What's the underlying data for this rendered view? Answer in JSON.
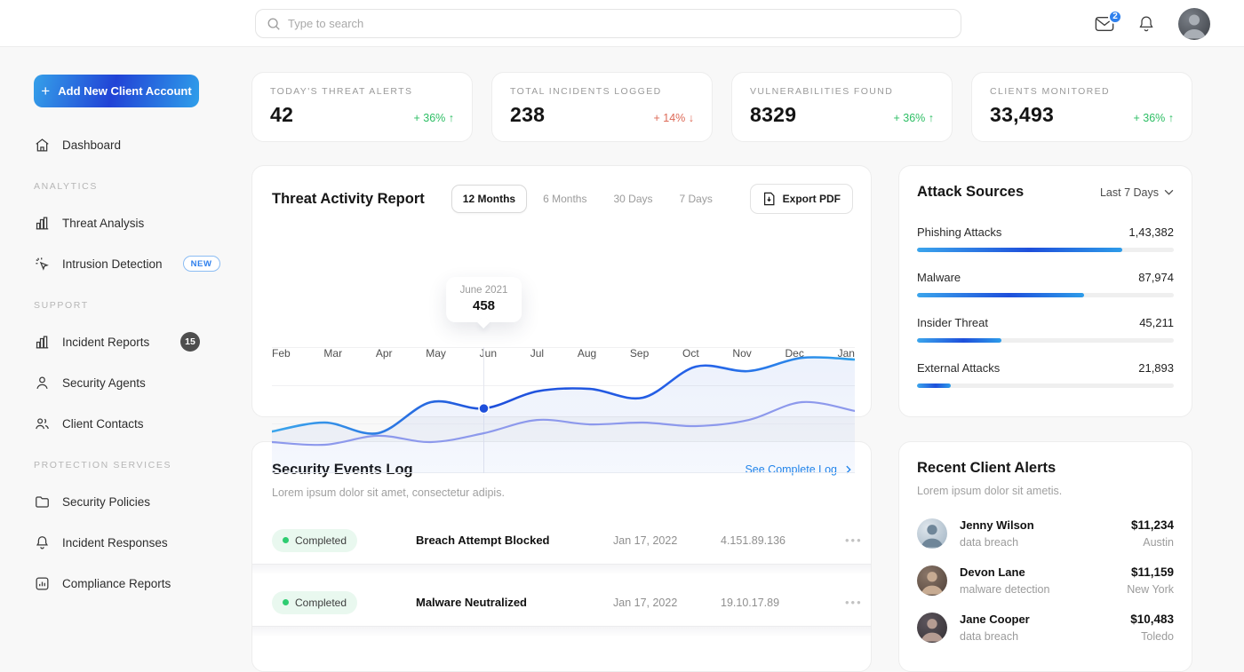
{
  "header": {
    "search_placeholder": "Type to search",
    "mail_badge": "2"
  },
  "sidebar": {
    "add_button": "Add New Client Account",
    "dashboard": "Dashboard",
    "sections": [
      {
        "label": "ANALYTICS",
        "items": [
          {
            "label": "Threat Analysis",
            "icon": "bar-chart"
          },
          {
            "label": "Intrusion Detection",
            "icon": "cursor-click",
            "badge": "NEW"
          }
        ]
      },
      {
        "label": "SUPPORT",
        "items": [
          {
            "label": "Incident Reports",
            "icon": "bar-chart",
            "badge": "15"
          },
          {
            "label": "Security Agents",
            "icon": "person"
          },
          {
            "label": "Client Contacts",
            "icon": "people"
          }
        ]
      },
      {
        "label": "PROTECTION SERVICES",
        "items": [
          {
            "label": "Security Policies",
            "icon": "folder"
          },
          {
            "label": "Incident Responses",
            "icon": "bell"
          },
          {
            "label": "Compliance Reports",
            "icon": "chart-square"
          }
        ]
      }
    ]
  },
  "stats": [
    {
      "label": "TODAY'S THREAT ALERTS",
      "value": "42",
      "change": "+ 36%",
      "arrow": "↑",
      "direction": "up"
    },
    {
      "label": "TOTAL INCIDENTS LOGGED",
      "value": "238",
      "change": "+ 14%",
      "arrow": "↓",
      "direction": "down"
    },
    {
      "label": "VULNERABILITIES FOUND",
      "value": "8329",
      "change": "+ 36%",
      "arrow": "↑",
      "direction": "up"
    },
    {
      "label": "CLIENTS MONITORED",
      "value": "33,493",
      "change": "+ 36%",
      "arrow": "↑",
      "direction": "up"
    }
  ],
  "threat_report": {
    "title": "Threat Activity Report",
    "tabs": [
      "12 Months",
      "6 Months",
      "30 Days",
      "7 Days"
    ],
    "active_tab": "12 Months",
    "export_label": "Export PDF"
  },
  "chart_data": {
    "type": "area",
    "title": "Threat Activity Report",
    "x": [
      "Feb",
      "Mar",
      "Apr",
      "May",
      "Jun",
      "Jul",
      "Aug",
      "Sep",
      "Oct",
      "Nov",
      "Dec",
      "Jan"
    ],
    "series": [
      {
        "name": "primary",
        "color": "gradient:#3ba6ec→#1e4fdb→#2fa0ea",
        "values": [
          348,
          391,
          340,
          488,
          458,
          539,
          551,
          509,
          657,
          636,
          699,
          691
        ]
      },
      {
        "name": "secondary",
        "color": "#8d99ec",
        "values": [
          298,
          285,
          328,
          298,
          340,
          403,
          382,
          391,
          374,
          403,
          488,
          446
        ]
      }
    ],
    "ylim": [
      150,
      750
    ],
    "grid": "horizontal",
    "legend": "none",
    "highlight": {
      "month": "Jun",
      "label": "June 2021",
      "value": "458"
    }
  },
  "attack_sources": {
    "title": "Attack Sources",
    "range_label": "Last 7 Days",
    "items": [
      {
        "label": "Phishing Attacks",
        "value": "1,43,382",
        "percent": 80
      },
      {
        "label": "Malware",
        "value": "87,974",
        "percent": 65
      },
      {
        "label": "Insider Threat",
        "value": "45,211",
        "percent": 33
      },
      {
        "label": "External Attacks",
        "value": "21,893",
        "percent": 13
      }
    ]
  },
  "events_log": {
    "title": "Security Events Log",
    "subtitle": "Lorem ipsum dolor sit amet, consectetur adipis.",
    "link": "See Complete Log",
    "rows": [
      {
        "status": "Completed",
        "event": "Breach Attempt Blocked",
        "date": "Jan 17, 2022",
        "ip": "4.151.89.136"
      },
      {
        "status": "Completed",
        "event": "Malware Neutralized",
        "date": "Jan 17, 2022",
        "ip": "19.10.17.89"
      }
    ]
  },
  "client_alerts": {
    "title": "Recent Client Alerts",
    "subtitle": "Lorem ipsum dolor sit ametis.",
    "rows": [
      {
        "name": "Jenny Wilson",
        "type": "data breach",
        "amount": "$11,234",
        "city": "Austin"
      },
      {
        "name": "Devon Lane",
        "type": "malware detection",
        "amount": "$11,159",
        "city": "New York"
      },
      {
        "name": "Jane Cooper",
        "type": "data breach",
        "amount": "$10,483",
        "city": "Toledo"
      }
    ]
  },
  "colors": {
    "accent_blue": "#2f80ed",
    "positive_green": "#2dbe64",
    "negative_red": "#dd6a57",
    "line_primary": "#1e4fdb",
    "line_secondary": "#8d99ec",
    "page_background": "#f8f8f8"
  }
}
